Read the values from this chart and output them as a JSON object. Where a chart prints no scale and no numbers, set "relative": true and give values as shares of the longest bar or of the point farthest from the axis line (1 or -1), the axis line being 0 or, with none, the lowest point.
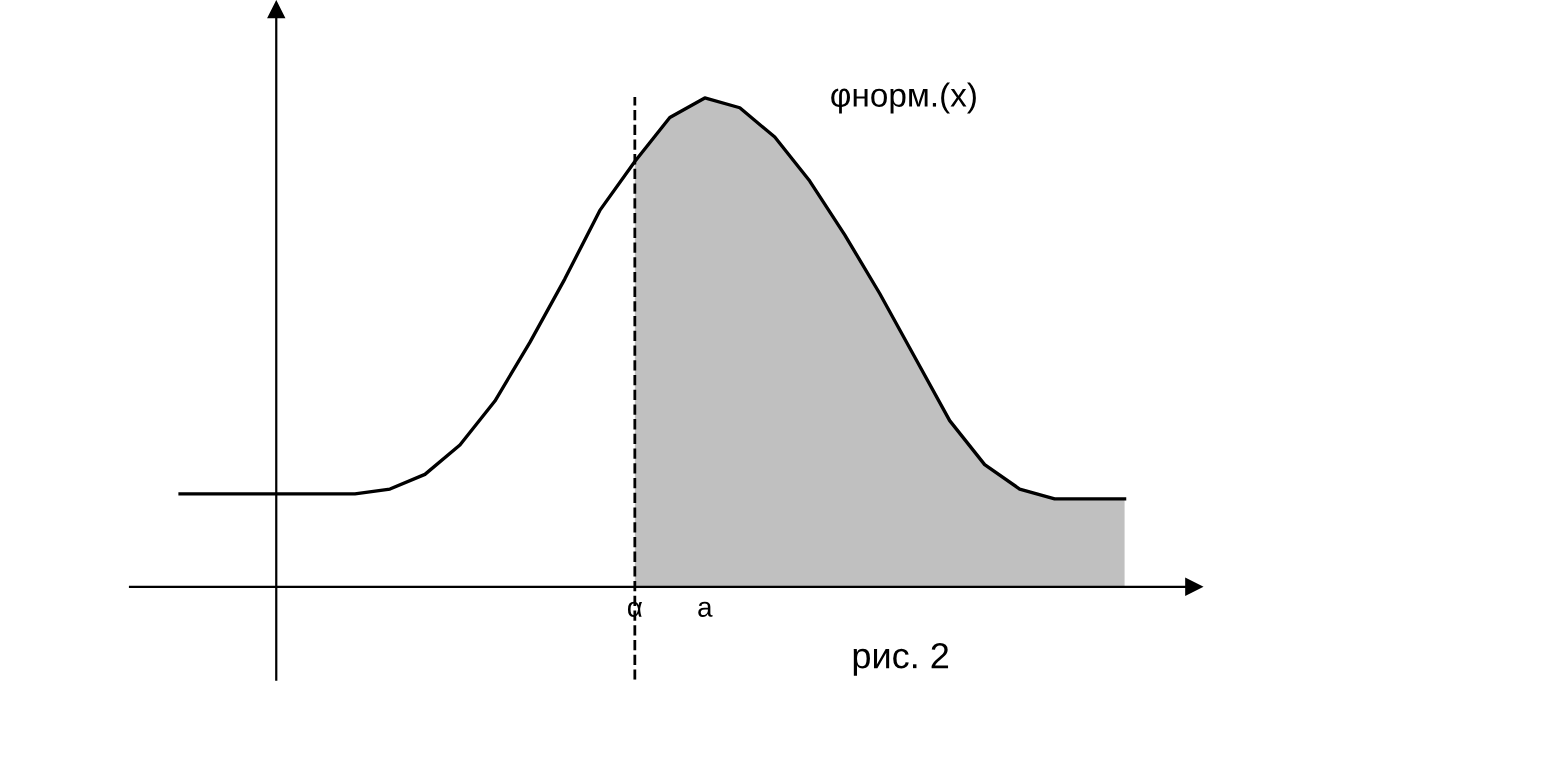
{
  "chart_data": {
    "type": "line",
    "relative": true,
    "tick_labels": "x",
    "grid": false,
    "legend": false,
    "marker": "none",
    "line_style": "solid",
    "categories": [
      null,
      null,
      null,
      null,
      null,
      null,
      null,
      null,
      null,
      null,
      null,
      null,
      null,
      "α",
      null,
      "a",
      null,
      null,
      null,
      null,
      null,
      null,
      null,
      null,
      null,
      null,
      null,
      null
    ],
    "series": [
      {
        "type": "area",
        "color": "#c0c0c0",
        "values": [
          null,
          null,
          null,
          null,
          null,
          null,
          null,
          null,
          null,
          null,
          null,
          null,
          null,
          0.87,
          0.96,
          1.0,
          0.98,
          0.92,
          0.83,
          0.72,
          0.6,
          0.47,
          0.34,
          0.25,
          0.2,
          0.18,
          0.18,
          0.18
        ]
      },
      {
        "name": "φнорм.(x)",
        "color": "#000000",
        "values": [
          0.19,
          0.19,
          0.19,
          0.19,
          0.19,
          0.19,
          0.2,
          0.23,
          0.29,
          0.38,
          0.5,
          0.63,
          0.77,
          0.87,
          0.96,
          1.0,
          0.98,
          0.92,
          0.83,
          0.72,
          0.6,
          0.47,
          0.34,
          0.25,
          0.2,
          0.18,
          0.18,
          0.18
        ]
      }
    ],
    "ref_lines": [
      {
        "axis": "x",
        "value": "α",
        "color": "#000000",
        "line_style": "dashed"
      }
    ],
    "annotations": [
      "рис. 2"
    ]
  }
}
